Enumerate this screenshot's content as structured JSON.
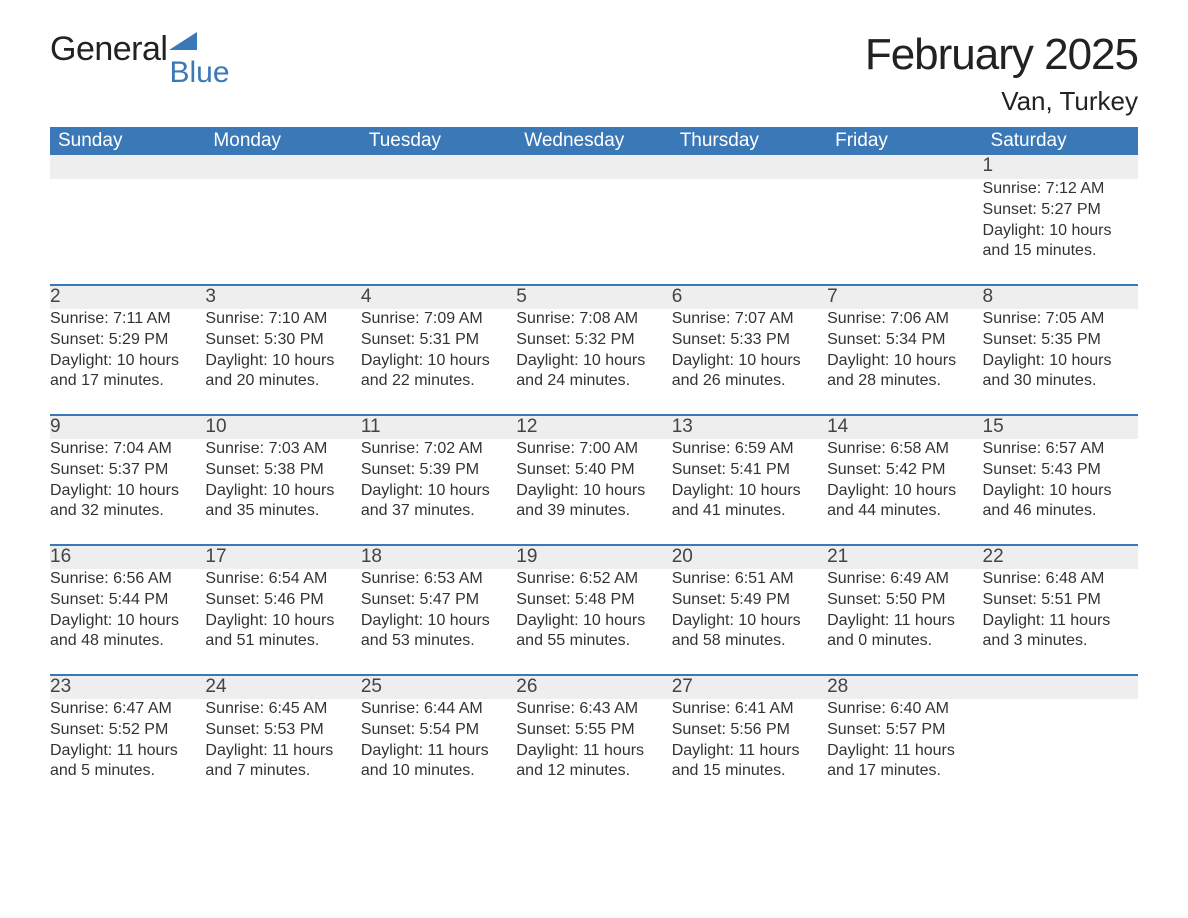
{
  "logo": {
    "part1": "General",
    "part2": "Blue"
  },
  "title": "February 2025",
  "location": "Van, Turkey",
  "colors": {
    "header_bg": "#3b78b8",
    "header_text": "#ffffff",
    "daynum_bg": "#eeeeee",
    "row_border": "#3b78b8",
    "logo_blue": "#3b78b8",
    "body_text": "#333333",
    "page_bg": "#ffffff"
  },
  "weekdays": [
    "Sunday",
    "Monday",
    "Tuesday",
    "Wednesday",
    "Thursday",
    "Friday",
    "Saturday"
  ],
  "weeks": [
    [
      {
        "n": "",
        "sunrise": "",
        "sunset": "",
        "daylight": ""
      },
      {
        "n": "",
        "sunrise": "",
        "sunset": "",
        "daylight": ""
      },
      {
        "n": "",
        "sunrise": "",
        "sunset": "",
        "daylight": ""
      },
      {
        "n": "",
        "sunrise": "",
        "sunset": "",
        "daylight": ""
      },
      {
        "n": "",
        "sunrise": "",
        "sunset": "",
        "daylight": ""
      },
      {
        "n": "",
        "sunrise": "",
        "sunset": "",
        "daylight": ""
      },
      {
        "n": "1",
        "sunrise": "Sunrise: 7:12 AM",
        "sunset": "Sunset: 5:27 PM",
        "daylight": "Daylight: 10 hours and 15 minutes."
      }
    ],
    [
      {
        "n": "2",
        "sunrise": "Sunrise: 7:11 AM",
        "sunset": "Sunset: 5:29 PM",
        "daylight": "Daylight: 10 hours and 17 minutes."
      },
      {
        "n": "3",
        "sunrise": "Sunrise: 7:10 AM",
        "sunset": "Sunset: 5:30 PM",
        "daylight": "Daylight: 10 hours and 20 minutes."
      },
      {
        "n": "4",
        "sunrise": "Sunrise: 7:09 AM",
        "sunset": "Sunset: 5:31 PM",
        "daylight": "Daylight: 10 hours and 22 minutes."
      },
      {
        "n": "5",
        "sunrise": "Sunrise: 7:08 AM",
        "sunset": "Sunset: 5:32 PM",
        "daylight": "Daylight: 10 hours and 24 minutes."
      },
      {
        "n": "6",
        "sunrise": "Sunrise: 7:07 AM",
        "sunset": "Sunset: 5:33 PM",
        "daylight": "Daylight: 10 hours and 26 minutes."
      },
      {
        "n": "7",
        "sunrise": "Sunrise: 7:06 AM",
        "sunset": "Sunset: 5:34 PM",
        "daylight": "Daylight: 10 hours and 28 minutes."
      },
      {
        "n": "8",
        "sunrise": "Sunrise: 7:05 AM",
        "sunset": "Sunset: 5:35 PM",
        "daylight": "Daylight: 10 hours and 30 minutes."
      }
    ],
    [
      {
        "n": "9",
        "sunrise": "Sunrise: 7:04 AM",
        "sunset": "Sunset: 5:37 PM",
        "daylight": "Daylight: 10 hours and 32 minutes."
      },
      {
        "n": "10",
        "sunrise": "Sunrise: 7:03 AM",
        "sunset": "Sunset: 5:38 PM",
        "daylight": "Daylight: 10 hours and 35 minutes."
      },
      {
        "n": "11",
        "sunrise": "Sunrise: 7:02 AM",
        "sunset": "Sunset: 5:39 PM",
        "daylight": "Daylight: 10 hours and 37 minutes."
      },
      {
        "n": "12",
        "sunrise": "Sunrise: 7:00 AM",
        "sunset": "Sunset: 5:40 PM",
        "daylight": "Daylight: 10 hours and 39 minutes."
      },
      {
        "n": "13",
        "sunrise": "Sunrise: 6:59 AM",
        "sunset": "Sunset: 5:41 PM",
        "daylight": "Daylight: 10 hours and 41 minutes."
      },
      {
        "n": "14",
        "sunrise": "Sunrise: 6:58 AM",
        "sunset": "Sunset: 5:42 PM",
        "daylight": "Daylight: 10 hours and 44 minutes."
      },
      {
        "n": "15",
        "sunrise": "Sunrise: 6:57 AM",
        "sunset": "Sunset: 5:43 PM",
        "daylight": "Daylight: 10 hours and 46 minutes."
      }
    ],
    [
      {
        "n": "16",
        "sunrise": "Sunrise: 6:56 AM",
        "sunset": "Sunset: 5:44 PM",
        "daylight": "Daylight: 10 hours and 48 minutes."
      },
      {
        "n": "17",
        "sunrise": "Sunrise: 6:54 AM",
        "sunset": "Sunset: 5:46 PM",
        "daylight": "Daylight: 10 hours and 51 minutes."
      },
      {
        "n": "18",
        "sunrise": "Sunrise: 6:53 AM",
        "sunset": "Sunset: 5:47 PM",
        "daylight": "Daylight: 10 hours and 53 minutes."
      },
      {
        "n": "19",
        "sunrise": "Sunrise: 6:52 AM",
        "sunset": "Sunset: 5:48 PM",
        "daylight": "Daylight: 10 hours and 55 minutes."
      },
      {
        "n": "20",
        "sunrise": "Sunrise: 6:51 AM",
        "sunset": "Sunset: 5:49 PM",
        "daylight": "Daylight: 10 hours and 58 minutes."
      },
      {
        "n": "21",
        "sunrise": "Sunrise: 6:49 AM",
        "sunset": "Sunset: 5:50 PM",
        "daylight": "Daylight: 11 hours and 0 minutes."
      },
      {
        "n": "22",
        "sunrise": "Sunrise: 6:48 AM",
        "sunset": "Sunset: 5:51 PM",
        "daylight": "Daylight: 11 hours and 3 minutes."
      }
    ],
    [
      {
        "n": "23",
        "sunrise": "Sunrise: 6:47 AM",
        "sunset": "Sunset: 5:52 PM",
        "daylight": "Daylight: 11 hours and 5 minutes."
      },
      {
        "n": "24",
        "sunrise": "Sunrise: 6:45 AM",
        "sunset": "Sunset: 5:53 PM",
        "daylight": "Daylight: 11 hours and 7 minutes."
      },
      {
        "n": "25",
        "sunrise": "Sunrise: 6:44 AM",
        "sunset": "Sunset: 5:54 PM",
        "daylight": "Daylight: 11 hours and 10 minutes."
      },
      {
        "n": "26",
        "sunrise": "Sunrise: 6:43 AM",
        "sunset": "Sunset: 5:55 PM",
        "daylight": "Daylight: 11 hours and 12 minutes."
      },
      {
        "n": "27",
        "sunrise": "Sunrise: 6:41 AM",
        "sunset": "Sunset: 5:56 PM",
        "daylight": "Daylight: 11 hours and 15 minutes."
      },
      {
        "n": "28",
        "sunrise": "Sunrise: 6:40 AM",
        "sunset": "Sunset: 5:57 PM",
        "daylight": "Daylight: 11 hours and 17 minutes."
      },
      {
        "n": "",
        "sunrise": "",
        "sunset": "",
        "daylight": ""
      }
    ]
  ]
}
